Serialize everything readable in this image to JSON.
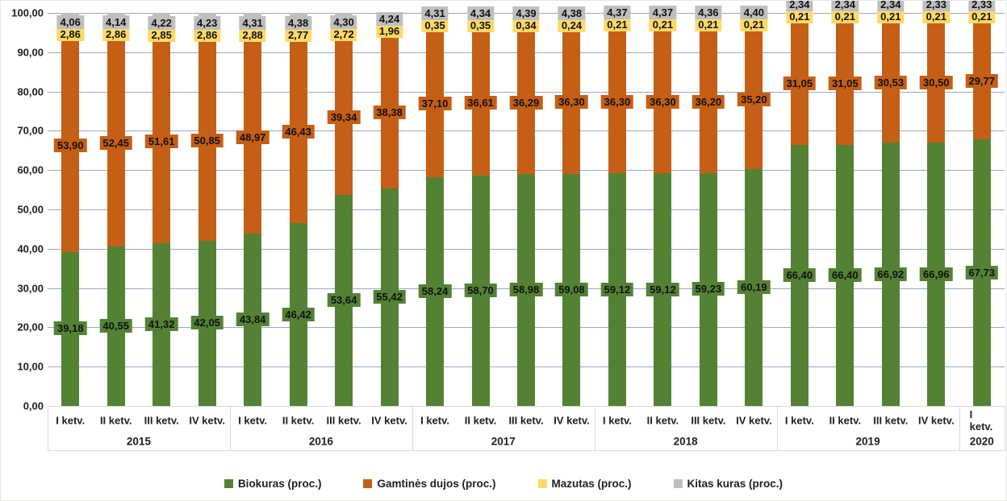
{
  "chart_data": {
    "type": "bar",
    "stacked": true,
    "ylabel": "",
    "xlabel": "",
    "y_axis": {
      "min": 0,
      "max": 100,
      "step": 10,
      "tick_labels": [
        "0,00",
        "10,00",
        "20,00",
        "30,00",
        "40,00",
        "50,00",
        "60,00",
        "70,00",
        "80,00",
        "90,00",
        "100,00"
      ],
      "grid": true
    },
    "legend_position": "bottom",
    "series": [
      {
        "key": "biokuras",
        "name": "Biokuras (proc.)",
        "color": "#548235"
      },
      {
        "key": "gamtines_dujos",
        "name": "Gamtinės dujos (proc.)",
        "color": "#c55f15"
      },
      {
        "key": "mazutas",
        "name": "Mazutas (proc.)",
        "color": "#ffd966"
      },
      {
        "key": "kitas_kuras",
        "name": "Kitas kuras (proc.)",
        "color": "#bfbfbf"
      }
    ],
    "groups": [
      {
        "year": "2015",
        "quarters": [
          {
            "label": "I ketv.",
            "biokuras": "39,18",
            "gamtines_dujos": "53,90",
            "mazutas": "2,86",
            "kitas_kuras": "4,06"
          },
          {
            "label": "II ketv.",
            "biokuras": "40,55",
            "gamtines_dujos": "52,45",
            "mazutas": "2,86",
            "kitas_kuras": "4,14"
          },
          {
            "label": "III ketv.",
            "biokuras": "41,32",
            "gamtines_dujos": "51,61",
            "mazutas": "2,85",
            "kitas_kuras": "4,22"
          },
          {
            "label": "IV ketv.",
            "biokuras": "42,05",
            "gamtines_dujos": "50,85",
            "mazutas": "2,86",
            "kitas_kuras": "4,23"
          }
        ]
      },
      {
        "year": "2016",
        "quarters": [
          {
            "label": "I ketv.",
            "biokuras": "43,84",
            "gamtines_dujos": "48,97",
            "mazutas": "2,88",
            "kitas_kuras": "4,31"
          },
          {
            "label": "II ketv.",
            "biokuras": "46,42",
            "gamtines_dujos": "46,43",
            "mazutas": "2,77",
            "kitas_kuras": "4,38"
          },
          {
            "label": "III ketv.",
            "biokuras": "53,64",
            "gamtines_dujos": "39,34",
            "mazutas": "2,72",
            "kitas_kuras": "4,30"
          },
          {
            "label": "IV ketv.",
            "biokuras": "55,42",
            "gamtines_dujos": "38,38",
            "mazutas": "1,96",
            "kitas_kuras": "4,24"
          }
        ]
      },
      {
        "year": "2017",
        "quarters": [
          {
            "label": "I ketv.",
            "biokuras": "58,24",
            "gamtines_dujos": "37,10",
            "mazutas": "0,35",
            "kitas_kuras": "4,31"
          },
          {
            "label": "II ketv.",
            "biokuras": "58,70",
            "gamtines_dujos": "36,61",
            "mazutas": "0,35",
            "kitas_kuras": "4,34"
          },
          {
            "label": "III ketv.",
            "biokuras": "58,98",
            "gamtines_dujos": "36,29",
            "mazutas": "0,34",
            "kitas_kuras": "4,39"
          },
          {
            "label": "IV ketv.",
            "biokuras": "59,08",
            "gamtines_dujos": "36,30",
            "mazutas": "0,24",
            "kitas_kuras": "4,38"
          }
        ]
      },
      {
        "year": "2018",
        "quarters": [
          {
            "label": "I ketv.",
            "biokuras": "59,12",
            "gamtines_dujos": "36,30",
            "mazutas": "0,21",
            "kitas_kuras": "4,37"
          },
          {
            "label": "II ketv.",
            "biokuras": "59,12",
            "gamtines_dujos": "36,30",
            "mazutas": "0,21",
            "kitas_kuras": "4,37"
          },
          {
            "label": "III ketv.",
            "biokuras": "59,23",
            "gamtines_dujos": "36,20",
            "mazutas": "0,21",
            "kitas_kuras": "4,36"
          },
          {
            "label": "IV ketv.",
            "biokuras": "60,19",
            "gamtines_dujos": "35,20",
            "mazutas": "0,21",
            "kitas_kuras": "4,40"
          }
        ]
      },
      {
        "year": "2019",
        "quarters": [
          {
            "label": "I ketv.",
            "biokuras": "66,40",
            "gamtines_dujos": "31,05",
            "mazutas": "0,21",
            "kitas_kuras": "2,34"
          },
          {
            "label": "II ketv.",
            "biokuras": "66,40",
            "gamtines_dujos": "31,05",
            "mazutas": "0,21",
            "kitas_kuras": "2,34"
          },
          {
            "label": "III ketv.",
            "biokuras": "66,92",
            "gamtines_dujos": "30,53",
            "mazutas": "0,21",
            "kitas_kuras": "2,34"
          },
          {
            "label": "IV ketv.",
            "biokuras": "66,96",
            "gamtines_dujos": "30,50",
            "mazutas": "0,21",
            "kitas_kuras": "2,33"
          }
        ]
      },
      {
        "year": "2020",
        "quarters": [
          {
            "label": "I ketv.",
            "biokuras": "67,73",
            "gamtines_dujos": "29,77",
            "mazutas": "0,21",
            "kitas_kuras": "2,33"
          }
        ]
      }
    ]
  }
}
